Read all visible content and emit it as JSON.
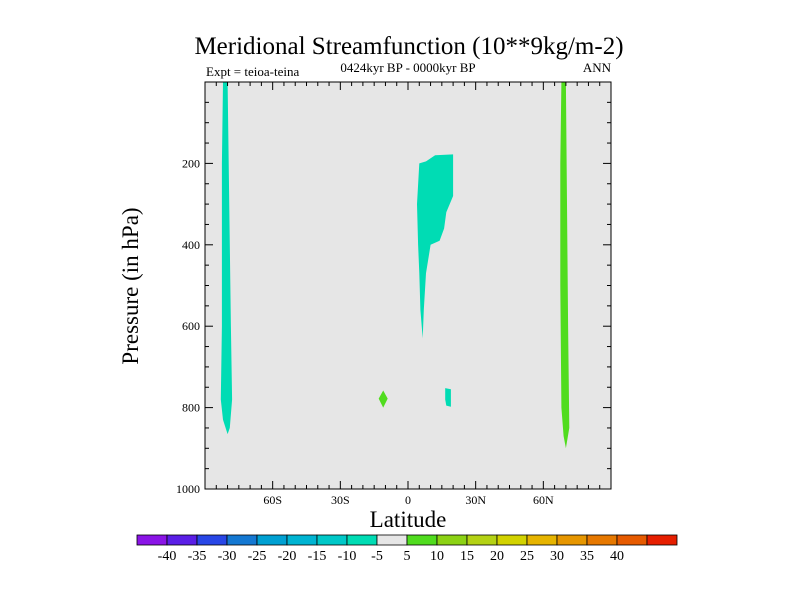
{
  "chart_data": {
    "type": "contour",
    "title": "Meridional Streamfunction (10**9kg/m-2)",
    "subtitle_left": "Expt = teioa-teina",
    "subtitle_center": "0424kyr BP - 0000kyr BP",
    "subtitle_right": "ANN",
    "xlabel": "Latitude",
    "ylabel": "Pressure (in hPa)",
    "xlim": [
      -90,
      90
    ],
    "ylim": [
      1000,
      0
    ],
    "x_ticks": [
      {
        "value": -60,
        "label": "60S"
      },
      {
        "value": -30,
        "label": "30S"
      },
      {
        "value": 0,
        "label": "0"
      },
      {
        "value": 30,
        "label": "30N"
      },
      {
        "value": 60,
        "label": "60N"
      }
    ],
    "y_ticks": [
      {
        "value": 200,
        "label": "200"
      },
      {
        "value": 400,
        "label": "400"
      },
      {
        "value": 600,
        "label": "600"
      },
      {
        "value": 800,
        "label": "800"
      },
      {
        "value": 1000,
        "label": "1000"
      }
    ],
    "background_color": "#e6e6e6",
    "regions": [
      {
        "name": "sh-polar-negative-band",
        "level": "-10 to -5",
        "color": "#00dcb4",
        "points": [
          [
            -82,
            0
          ],
          [
            -80,
            0
          ],
          [
            -79.5,
            200
          ],
          [
            -79,
            400
          ],
          [
            -78.5,
            600
          ],
          [
            -78,
            780
          ],
          [
            -79,
            850
          ],
          [
            -80,
            865
          ],
          [
            -82,
            830
          ],
          [
            -83,
            780
          ],
          [
            -82.5,
            600
          ],
          [
            -82.5,
            200
          ]
        ]
      },
      {
        "name": "tropical-upper-negative-cell",
        "level": "-10 to -5",
        "color": "#00dcb4",
        "points": [
          [
            5,
            200
          ],
          [
            8,
            195
          ],
          [
            12,
            180
          ],
          [
            20,
            178
          ],
          [
            20,
            280
          ],
          [
            17,
            320
          ],
          [
            16,
            360
          ],
          [
            14,
            390
          ],
          [
            10,
            400
          ],
          [
            8,
            470
          ],
          [
            7,
            560
          ],
          [
            6.5,
            630
          ],
          [
            5.5,
            560
          ],
          [
            5,
            470
          ],
          [
            4.5,
            400
          ],
          [
            4,
            300
          ]
        ]
      },
      {
        "name": "small-negative-patch-20n",
        "level": "-10 to -5",
        "color": "#00dcb4",
        "points": [
          [
            16.5,
            752
          ],
          [
            19,
            755
          ],
          [
            19,
            798
          ],
          [
            17,
            795
          ],
          [
            16.5,
            780
          ]
        ]
      },
      {
        "name": "positive-diamond-12s",
        "level": "5 to 10",
        "color": "#50dc1e",
        "points": [
          [
            -11,
            758
          ],
          [
            -9,
            778
          ],
          [
            -11,
            800
          ],
          [
            -13,
            778
          ]
        ]
      },
      {
        "name": "nh-polar-positive-band",
        "level": "5 to 10",
        "color": "#50dc1e",
        "points": [
          [
            68,
            0
          ],
          [
            70,
            0
          ],
          [
            70.5,
            300
          ],
          [
            71,
            600
          ],
          [
            71.5,
            850
          ],
          [
            70,
            900
          ],
          [
            69,
            870
          ],
          [
            68,
            800
          ],
          [
            67.5,
            500
          ],
          [
            67.5,
            200
          ]
        ]
      }
    ],
    "colorbar": {
      "colors": [
        "#8a14e6",
        "#5a1ee6",
        "#2846e6",
        "#1478d2",
        "#00a0d2",
        "#00b4d2",
        "#00c8c8",
        "#00dcb4",
        "#e6e6e6",
        "#50dc1e",
        "#8cd214",
        "#b4d214",
        "#d2d200",
        "#e6b400",
        "#e69600",
        "#e67800",
        "#e65a00",
        "#e61e00"
      ],
      "labels": [
        "-40",
        "-35",
        "-30",
        "-25",
        "-20",
        "-15",
        "-10",
        "-5",
        "5",
        "10",
        "15",
        "20",
        "25",
        "30",
        "35",
        "40"
      ]
    }
  }
}
